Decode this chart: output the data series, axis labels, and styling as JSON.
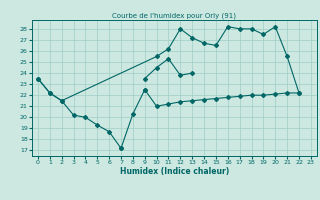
{
  "title": "Courbe de l'humidex pour Orly (91)",
  "xlabel": "Humidex (Indice chaleur)",
  "bg_color": "#cce8e0",
  "grid_color": "#9fcfc5",
  "line_color": "#006666",
  "xlim": [
    -0.5,
    23.5
  ],
  "ylim": [
    16.5,
    28.8
  ],
  "yticks": [
    17,
    18,
    19,
    20,
    21,
    22,
    23,
    24,
    25,
    26,
    27,
    28
  ],
  "xticks": [
    0,
    1,
    2,
    3,
    4,
    5,
    6,
    7,
    8,
    9,
    10,
    11,
    12,
    13,
    14,
    15,
    16,
    17,
    18,
    19,
    20,
    21,
    22,
    23
  ],
  "lines": [
    {
      "x": [
        0,
        1,
        2,
        3,
        4,
        5,
        6,
        7
      ],
      "y": [
        23.5,
        22.2,
        21.5,
        20.2,
        20.0,
        19.3,
        18.7,
        17.2
      ]
    },
    {
      "x": [
        7,
        8,
        9
      ],
      "y": [
        17.2,
        20.3,
        22.5
      ]
    },
    {
      "x": [
        0,
        1,
        2,
        10,
        11,
        12,
        13,
        14,
        15,
        16,
        17,
        18,
        19,
        20,
        21,
        22
      ],
      "y": [
        23.5,
        22.2,
        21.5,
        25.5,
        26.2,
        28.0,
        27.2,
        26.7,
        26.5,
        28.2,
        28.0,
        28.0,
        27.5,
        28.2,
        25.5,
        22.2
      ]
    },
    {
      "x": [
        9,
        10,
        11,
        12,
        13
      ],
      "y": [
        23.5,
        24.5,
        25.3,
        23.8,
        24.0
      ]
    },
    {
      "x": [
        9,
        10,
        11,
        12,
        13,
        14,
        15,
        16,
        17,
        18,
        19,
        20,
        21,
        22
      ],
      "y": [
        22.5,
        21.0,
        21.2,
        21.4,
        21.5,
        21.6,
        21.7,
        21.8,
        21.9,
        22.0,
        22.0,
        22.1,
        22.2,
        22.2
      ]
    }
  ]
}
